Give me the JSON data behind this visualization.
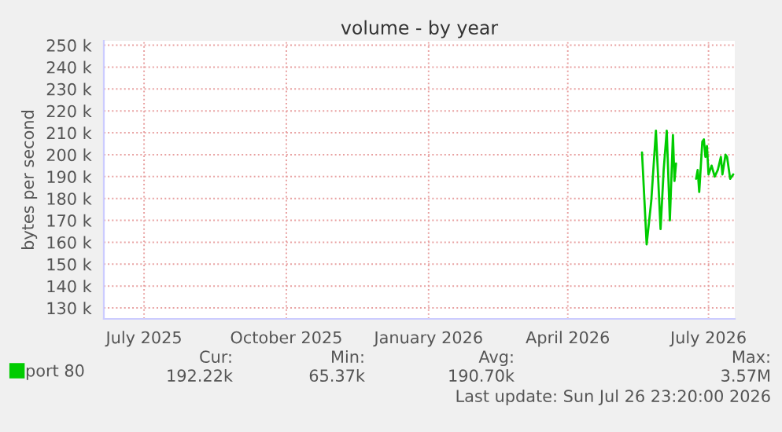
{
  "chart_data": {
    "type": "line",
    "title": "volume - by year",
    "ylabel": "bytes per second",
    "x": [
      "2026-05-19",
      "2026-05-22",
      "2026-05-25",
      "2026-05-28",
      "2026-05-31",
      "2026-06-02",
      "2026-06-04",
      "2026-06-06",
      "2026-06-08",
      "2026-06-09",
      "2026-06-10",
      "2026-06-16",
      "2026-06-23",
      "2026-06-24",
      "2026-06-25",
      "2026-06-27",
      "2026-06-28",
      "2026-06-29",
      "2026-06-30",
      "2026-07-01",
      "2026-07-03",
      "2026-07-05",
      "2026-07-07",
      "2026-07-09",
      "2026-07-10",
      "2026-07-12",
      "2026-07-13",
      "2026-07-15",
      "2026-07-17"
    ],
    "series": [
      {
        "name": "port 80",
        "color": "#00cc00",
        "values": [
          201000,
          159000,
          179000,
          211000,
          166000,
          193000,
          211000,
          170000,
          209000,
          188000,
          196000,
          null,
          189000,
          193000,
          183000,
          206000,
          207000,
          199000,
          204000,
          191000,
          195000,
          190000,
          193000,
          199000,
          191000,
          200000,
          199000,
          189000,
          191000
        ]
      }
    ],
    "xlim": [
      "2025-06-05",
      "2026-07-18"
    ],
    "xticks": [
      {
        "value": "2025-07-01",
        "label": "July 2025"
      },
      {
        "value": "2025-10-01",
        "label": "October 2025"
      },
      {
        "value": "2026-01-01",
        "label": "January 2026"
      },
      {
        "value": "2026-04-01",
        "label": "April 2026"
      },
      {
        "value": "2026-07-01",
        "label": "July 2026"
      }
    ],
    "ylim": [
      125000,
      252000
    ],
    "yticks": [
      {
        "value": 130000,
        "label": "130 k"
      },
      {
        "value": 140000,
        "label": "140 k"
      },
      {
        "value": 150000,
        "label": "150 k"
      },
      {
        "value": 160000,
        "label": "160 k"
      },
      {
        "value": 170000,
        "label": "170 k"
      },
      {
        "value": 180000,
        "label": "180 k"
      },
      {
        "value": 190000,
        "label": "190 k"
      },
      {
        "value": 200000,
        "label": "200 k"
      },
      {
        "value": 210000,
        "label": "210 k"
      },
      {
        "value": 220000,
        "label": "220 k"
      },
      {
        "value": 230000,
        "label": "230 k"
      },
      {
        "value": 240000,
        "label": "240 k"
      },
      {
        "value": 250000,
        "label": "250 k"
      }
    ],
    "grid": true,
    "legend": "bottom left",
    "annotations": [
      "Cur:",
      "192.22k",
      "Min:",
      "65.37k",
      "Avg:",
      "190.70k",
      "Max:",
      "3.57M",
      "Last update: Sun Jul 26 23:20:00 2026"
    ]
  }
}
